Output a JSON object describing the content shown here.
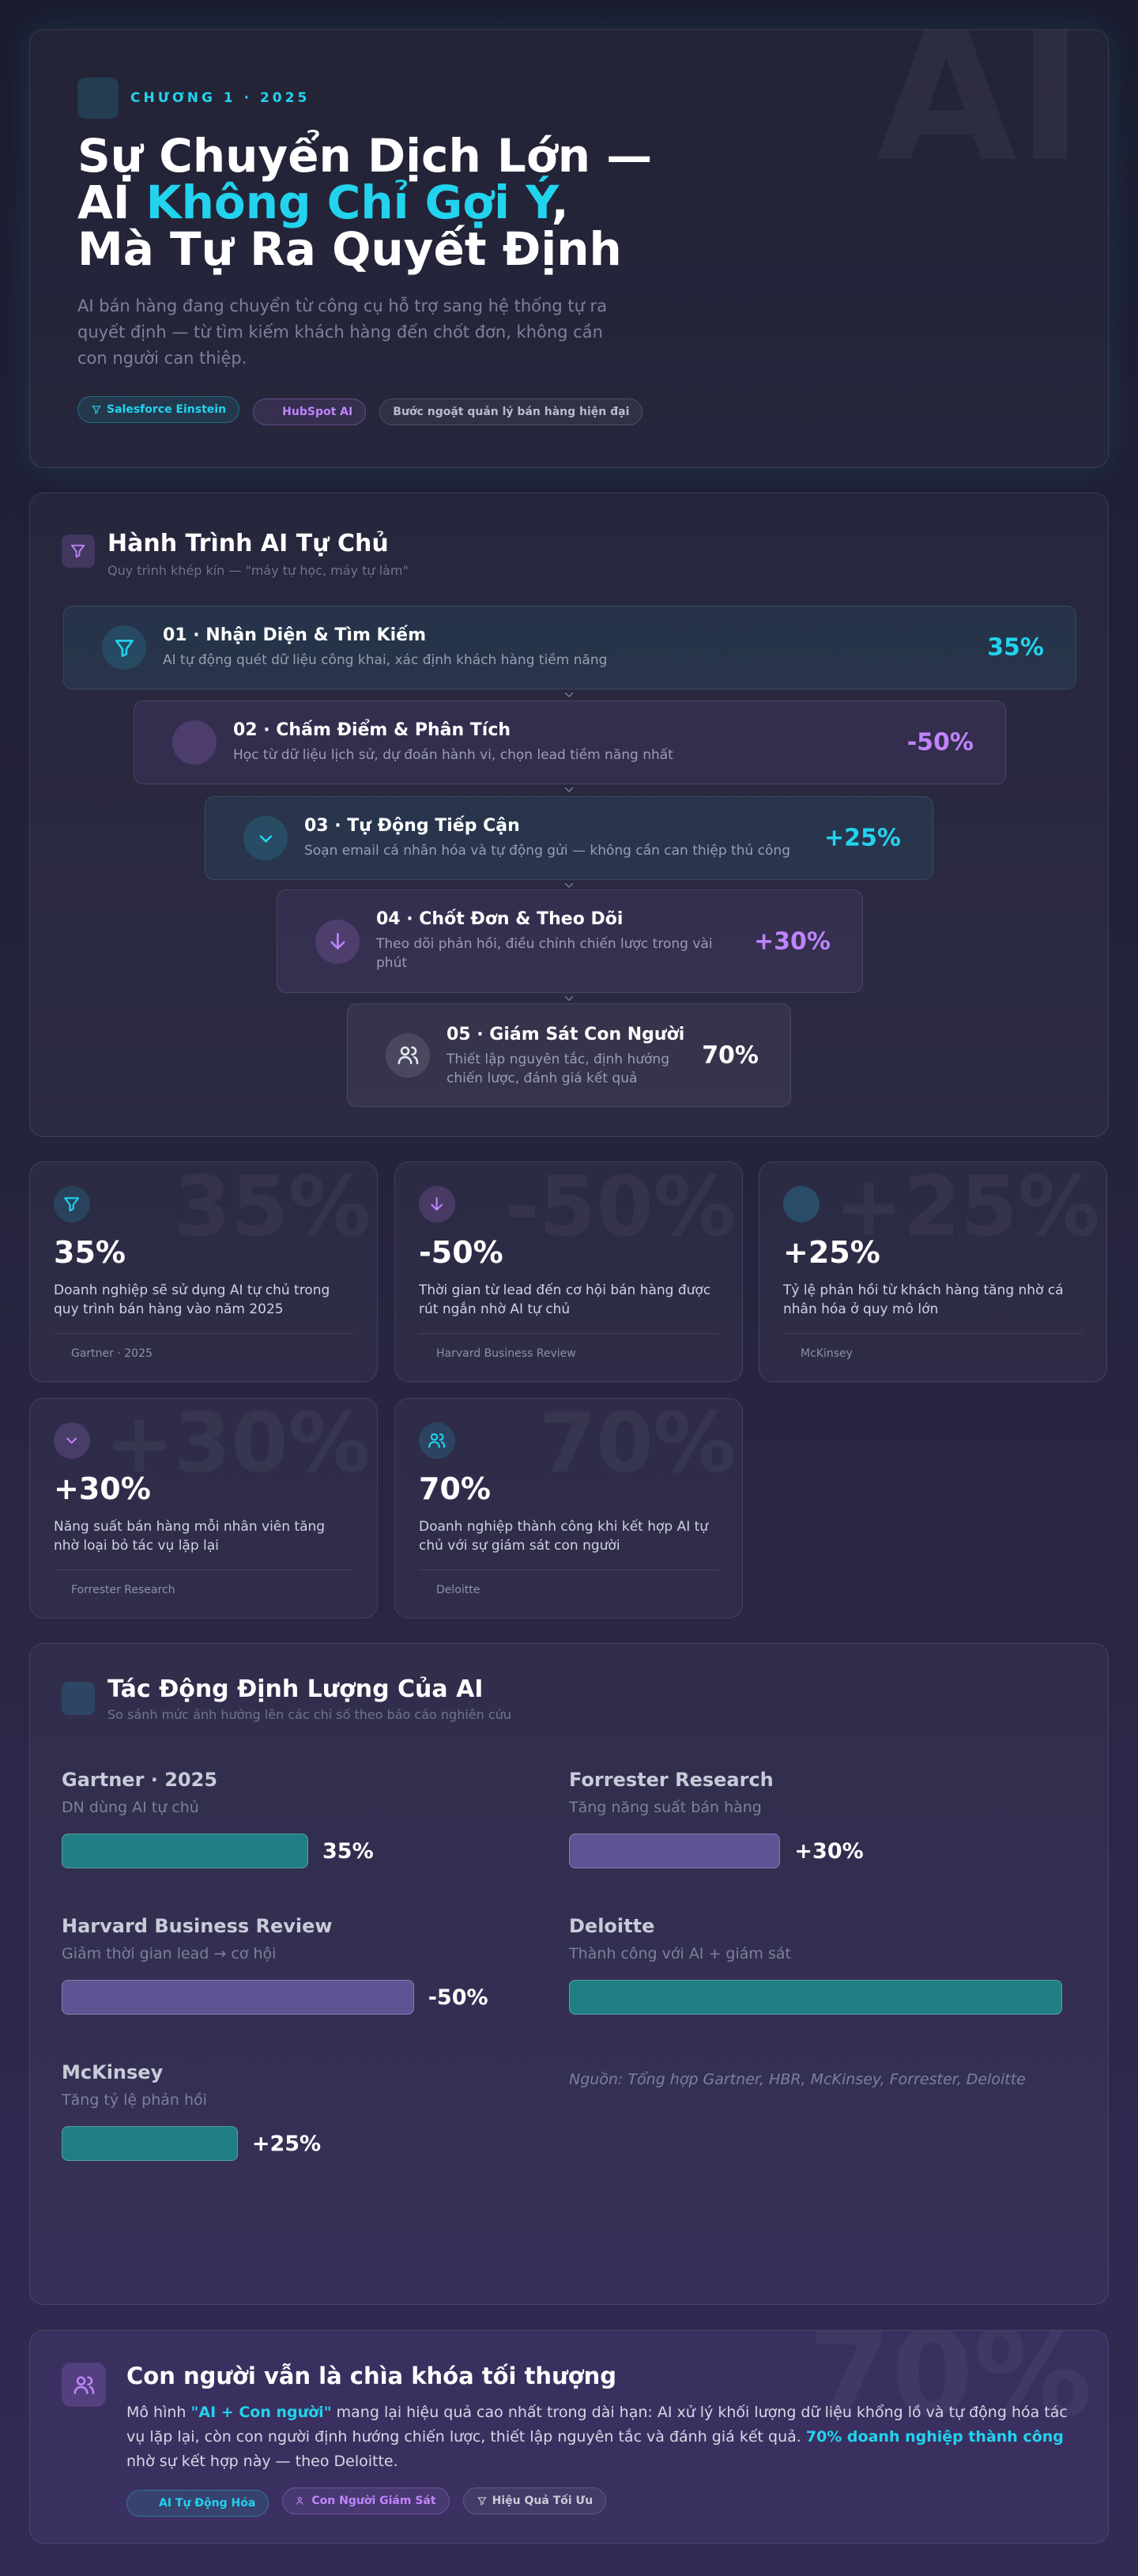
{
  "hero": {
    "eyebrow": "CHƯƠNG 1 · 2025",
    "title_line1": "Sự Chuyển Dịch Lớn —",
    "title_line2_prefix": "AI ",
    "title_line2_highlight": "Không Chỉ Gợi Ý",
    "title_line2_suffix": ",",
    "title_line3": "Mà Tự Ra Quyết Định",
    "description": "AI bán hàng đang chuyển từ công cụ hỗ trợ sang hệ thống tự ra quyết định — từ tìm kiếm khách hàng đến chốt đơn, không cần con người can thiệp.",
    "tags": [
      "Salesforce Einstein",
      "HubSpot AI",
      "Bước ngoặt quản lý bán hàng hiện đại"
    ],
    "watermark": "AI"
  },
  "journey": {
    "title": "Hành Trình AI Tự Chủ",
    "subtitle": "Quy trình khép kín — \"máy tự học, máy tự làm\"",
    "steps": [
      {
        "title": "01 · Nhận Diện & Tìm Kiếm",
        "description": "AI tự động quét dữ liệu công khai, xác định khách hàng tiềm năng",
        "value": "35%"
      },
      {
        "title": "02 · Chấm Điểm & Phân Tích",
        "description": "Học từ dữ liệu lịch sử, dự đoán hành vi, chọn lead tiềm năng nhất",
        "value": "-50%"
      },
      {
        "title": "03 · Tự Động Tiếp Cận",
        "description": "Soạn email cá nhân hóa và tự động gửi — không cần can thiệp thủ công",
        "value": "+25%"
      },
      {
        "title": "04 · Chốt Đơn & Theo Dõi",
        "description": "Theo dõi phản hồi, điều chỉnh chiến lược trong vài phút",
        "value": "+30%"
      },
      {
        "title": "05 · Giám Sát Con Người",
        "description": "Thiết lập nguyên tắc, định hướng chiến lược, đánh giá kết quả",
        "value": "70%"
      }
    ]
  },
  "stats": [
    {
      "value": "35%",
      "description": "Doanh nghiệp sẽ sử dụng AI tự chủ trong quy trình bán hàng vào năm 2025",
      "source": "Gartner · 2025"
    },
    {
      "value": "-50%",
      "description": "Thời gian từ lead đến cơ hội bán hàng được rút ngắn nhờ AI tự chủ",
      "source": "Harvard Business Review"
    },
    {
      "value": "+25%",
      "description": "Tỷ lệ phản hồi từ khách hàng tăng nhờ cá nhân hóa ở quy mô lớn",
      "source": "McKinsey"
    },
    {
      "value": "+30%",
      "description": "Năng suất bán hàng mỗi nhân viên tăng nhờ loại bỏ tác vụ lặp lại",
      "source": "Forrester Research"
    },
    {
      "value": "70%",
      "description": "Doanh nghiệp thành công khi kết hợp AI tự chủ với sự giám sát con người",
      "source": "Deloitte"
    }
  ],
  "impact": {
    "title": "Tác Động Định Lượng Của AI",
    "subtitle": "So sánh mức ảnh hưởng lên các chỉ số theo báo cáo nghiên cứu",
    "items": [
      {
        "source": "Gartner · 2025",
        "metric": "DN dùng AI tự chủ",
        "value": 35,
        "value_label": "35%",
        "color": "#1f7f84"
      },
      {
        "source": "Forrester Research",
        "metric": "Tăng năng suất bán hàng",
        "value": 30,
        "value_label": "+30%",
        "color": "#5e5494"
      },
      {
        "source": "Harvard Business Review",
        "metric": "Giảm thời gian lead → cơ hội",
        "value": -50,
        "value_label": "-50%",
        "color": "#5e5494"
      },
      {
        "source": "Deloitte",
        "metric": "Thành công với AI + giám sát",
        "value": 70,
        "color": "#1f7f84"
      },
      {
        "source": "McKinsey",
        "metric": "Tăng tỷ lệ phản hồi",
        "value": 25,
        "value_label": "+25%",
        "color": "#1f7f84"
      }
    ],
    "note": "Nguồn: Tổng hợp Gartner, HBR, McKinsey, Forrester, Deloitte"
  },
  "conclusion": {
    "title": "Con người vẫn là chìa khóa tối thượng",
    "body": [
      "Mô hình ",
      "\"AI + Con người\"",
      " mang lại hiệu quả cao nhất trong dài hạn: AI xử lý khối lượng dữ liệu khổng lồ và tự động hóa tác vụ lặp lại, còn con người định hướng chiến lược, thiết lập nguyên tắc và đánh giá kết quả. ",
      "70% doanh nghiệp thành công",
      " nhờ sự kết hợp này — theo Deloitte."
    ],
    "tags": [
      "AI Tự Động Hóa",
      "Con Người Giám Sát",
      "Hiệu Quả Tối Ưu"
    ],
    "watermark": "70%"
  }
}
